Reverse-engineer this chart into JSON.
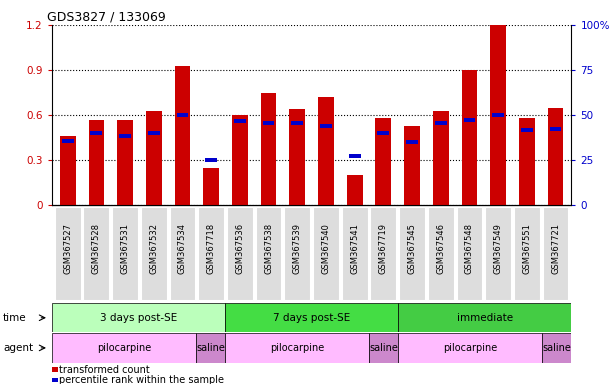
{
  "title": "GDS3827 / 133069",
  "samples": [
    "GSM367527",
    "GSM367528",
    "GSM367531",
    "GSM367532",
    "GSM367534",
    "GSM367718",
    "GSM367536",
    "GSM367538",
    "GSM367539",
    "GSM367540",
    "GSM367541",
    "GSM367719",
    "GSM367545",
    "GSM367546",
    "GSM367548",
    "GSM367549",
    "GSM367551",
    "GSM367721"
  ],
  "red_values": [
    0.46,
    0.57,
    0.57,
    0.63,
    0.93,
    0.25,
    0.6,
    0.75,
    0.64,
    0.72,
    0.2,
    0.58,
    0.53,
    0.63,
    0.9,
    1.2,
    0.58,
    0.65
  ],
  "blue_values": [
    0.43,
    0.48,
    0.46,
    0.48,
    0.6,
    0.3,
    0.56,
    0.55,
    0.55,
    0.53,
    0.33,
    0.48,
    0.42,
    0.55,
    0.57,
    0.6,
    0.5,
    0.51
  ],
  "red_color": "#cc0000",
  "blue_color": "#0000cc",
  "bar_width": 0.55,
  "ylim": [
    0,
    1.2
  ],
  "y2lim": [
    0,
    100
  ],
  "yticks": [
    0,
    0.3,
    0.6,
    0.9,
    1.2
  ],
  "ytick_labels": [
    "0",
    "0.3",
    "0.6",
    "0.9",
    "1.2"
  ],
  "y2ticks": [
    0,
    25,
    50,
    75,
    100
  ],
  "y2tick_labels": [
    "0",
    "25",
    "50",
    "75",
    "100%"
  ],
  "time_groups": [
    {
      "label": "3 days post-SE",
      "start": 0,
      "end": 6,
      "color": "#bbffbb"
    },
    {
      "label": "7 days post-SE",
      "start": 6,
      "end": 12,
      "color": "#44dd44"
    },
    {
      "label": "immediate",
      "start": 12,
      "end": 18,
      "color": "#44cc44"
    }
  ],
  "agent_groups": [
    {
      "label": "pilocarpine",
      "start": 0,
      "end": 5,
      "color": "#ffbbff"
    },
    {
      "label": "saline",
      "start": 5,
      "end": 6,
      "color": "#cc88cc"
    },
    {
      "label": "pilocarpine",
      "start": 6,
      "end": 11,
      "color": "#ffbbff"
    },
    {
      "label": "saline",
      "start": 11,
      "end": 12,
      "color": "#cc88cc"
    },
    {
      "label": "pilocarpine",
      "start": 12,
      "end": 17,
      "color": "#ffbbff"
    },
    {
      "label": "saline",
      "start": 17,
      "end": 18,
      "color": "#cc88cc"
    }
  ],
  "legend_items": [
    {
      "label": "transformed count",
      "color": "#cc0000"
    },
    {
      "label": "percentile rank within the sample",
      "color": "#0000cc"
    }
  ],
  "bg_color": "#ffffff",
  "tick_label_color_left": "#cc0000",
  "tick_label_color_right": "#0000cc",
  "xticklabel_bg": "#dddddd"
}
